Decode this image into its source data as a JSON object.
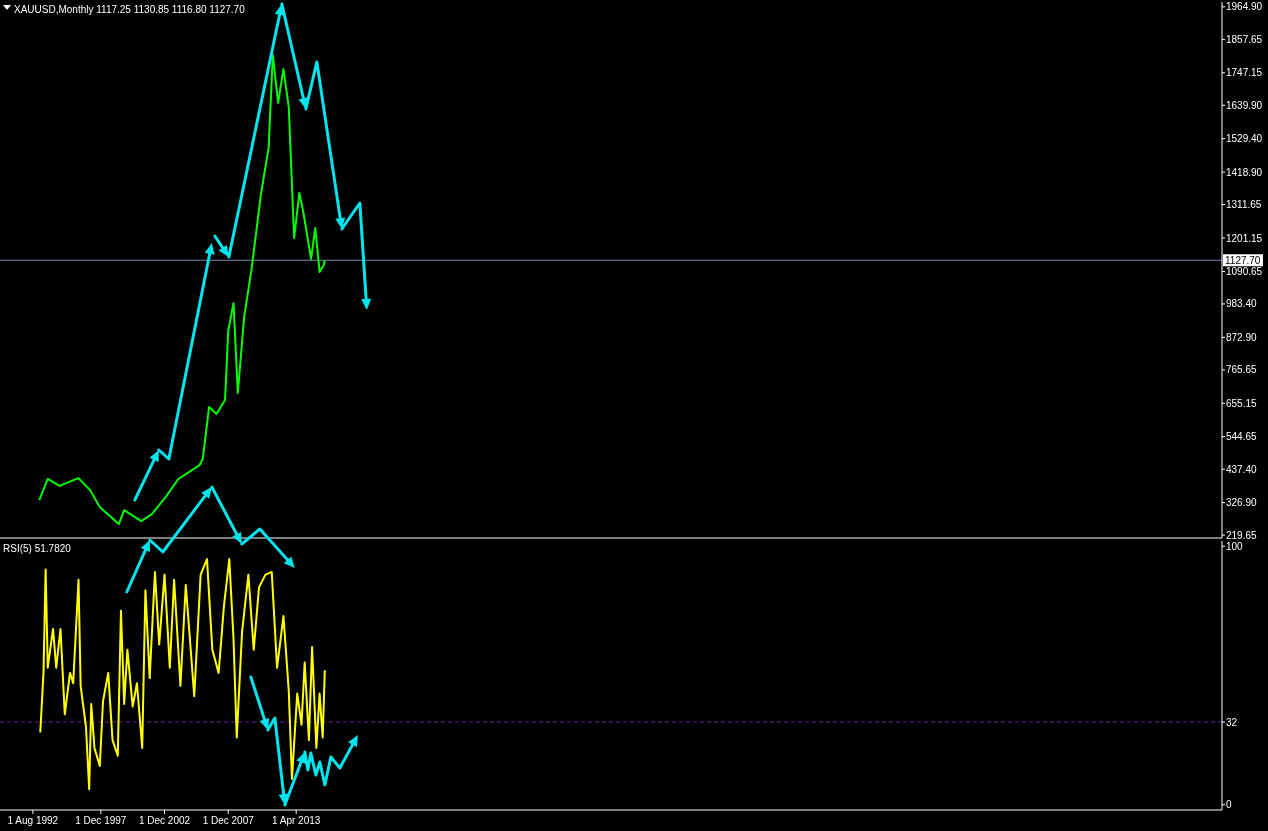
{
  "chart_data": [
    {
      "type": "line",
      "title": "XAUUSD,Monthly 1117.25 1130.85 1116.80 1127.70",
      "tick_labels": "y",
      "xlim": [
        "1990-01",
        "2085-12"
      ],
      "ylim": [
        210,
        1981
      ],
      "yticks": [
        219.65,
        {
          "value": 326.9,
          "label": "326.90"
        },
        {
          "value": 437.4,
          "label": "437.40"
        },
        544.65,
        655.15,
        765.65,
        {
          "value": 872.9,
          "label": "872.90"
        },
        {
          "value": 983.4,
          "label": "983.40"
        },
        1090.65,
        1201.15,
        1311.65,
        {
          "value": 1418.9,
          "label": "1418.90"
        },
        {
          "value": 1529.4,
          "label": "1529.40"
        },
        {
          "value": 1639.9,
          "label": "1639.90"
        },
        1747.15,
        1857.65,
        {
          "value": 1964.9,
          "label": "1964.90"
        }
      ],
      "ref_lines": [
        {
          "axis": "y",
          "value": 1127.7,
          "label": "1127.70",
          "color": "#7a8aa8"
        }
      ],
      "series": [
        {
          "color": "#00ff00",
          "x": [
            "1993-02",
            "1993-10",
            "1994-09",
            "1996-03",
            "1997-02",
            "1997-11",
            "1999-05",
            "1999-10",
            "2001-02",
            "2001-12",
            "2003-01",
            "2004-01",
            "2005-09",
            "2005-12",
            "2006-06",
            "2007-01",
            "2007-09",
            "2007-12",
            "2008-05",
            "2008-09",
            "2009-03",
            "2009-10",
            "2010-07",
            "2011-02",
            "2011-06",
            "2011-11",
            "2012-04",
            "2012-09",
            "2013-02",
            "2013-07",
            "2013-11",
            "2014-06",
            "2014-10",
            "2015-02",
            "2015-06",
            "2015-07"
          ],
          "values": [
            335,
            405,
            382,
            408,
            368,
            312,
            256,
            302,
            266,
            289,
            345,
            405,
            451,
            471,
            643,
            620,
            666,
            894,
            986,
            689,
            940,
            1099,
            1350,
            1499,
            1806,
            1648,
            1760,
            1634,
            1201,
            1350,
            1281,
            1132,
            1234,
            1089,
            1112,
            1128
          ]
        }
      ]
    },
    {
      "type": "line",
      "title": "RSI(5) 51.7820",
      "xlim": [
        "1990-01",
        "2085-12"
      ],
      "ylim": [
        -2,
        102
      ],
      "xticks": [
        {
          "value": "1992-08-01",
          "label": "1 Aug 1992"
        },
        {
          "value": "1997-12-01",
          "label": "1 Dec 1997"
        },
        {
          "value": "2002-12-01",
          "label": "1 Dec 2002"
        },
        {
          "value": "2007-12-01",
          "label": "1 Dec 2007"
        },
        {
          "value": "2013-04-01",
          "label": "1 Apr 2013"
        }
      ],
      "yticks": [
        0,
        32,
        100
      ],
      "ref_lines": [
        {
          "axis": "y",
          "value": 32,
          "color": "#6020a0",
          "line_style": "dashed"
        }
      ],
      "series": [
        {
          "color": "#ffff00",
          "x": [
            "1993-03",
            "1993-06",
            "1993-08",
            "1993-10",
            "1994-03",
            "1994-06",
            "1994-10",
            "1995-02",
            "1995-07",
            "1995-10",
            "1996-03",
            "1996-05",
            "1996-10",
            "1997-01",
            "1997-03",
            "1997-06",
            "1997-11",
            "1998-02",
            "1998-07",
            "1998-11",
            "1999-04",
            "1999-07",
            "1999-10",
            "2000-01",
            "2000-06",
            "2000-10",
            "2001-03",
            "2001-06",
            "2001-10",
            "2002-03",
            "2002-07",
            "2002-12",
            "2003-05",
            "2003-09",
            "2004-03",
            "2004-08",
            "2005-04",
            "2005-10",
            "2006-04",
            "2006-09",
            "2007-03",
            "2007-08",
            "2008-01",
            "2008-05",
            "2008-08",
            "2009-01",
            "2009-07",
            "2009-12",
            "2010-05",
            "2010-11",
            "2011-05",
            "2011-10",
            "2012-04",
            "2012-09",
            "2012-12",
            "2013-05",
            "2013-09",
            "2013-12",
            "2014-04",
            "2014-07",
            "2014-11",
            "2015-02",
            "2015-05",
            "2015-07"
          ],
          "values": [
            28,
            51,
            91,
            53,
            68,
            53,
            68,
            35,
            51,
            47,
            87,
            46,
            30,
            6,
            39,
            22,
            15,
            40,
            51,
            25,
            19,
            75,
            39,
            60,
            38,
            47,
            22,
            83,
            49,
            90,
            62,
            89,
            53,
            87,
            46,
            85,
            42,
            89,
            95,
            60,
            51,
            77,
            95,
            64,
            26,
            67,
            89,
            60,
            84,
            89,
            90,
            53,
            73,
            44,
            10,
            43,
            31,
            55,
            25,
            61,
            22,
            43,
            26,
            52
          ]
        }
      ]
    }
  ]
}
